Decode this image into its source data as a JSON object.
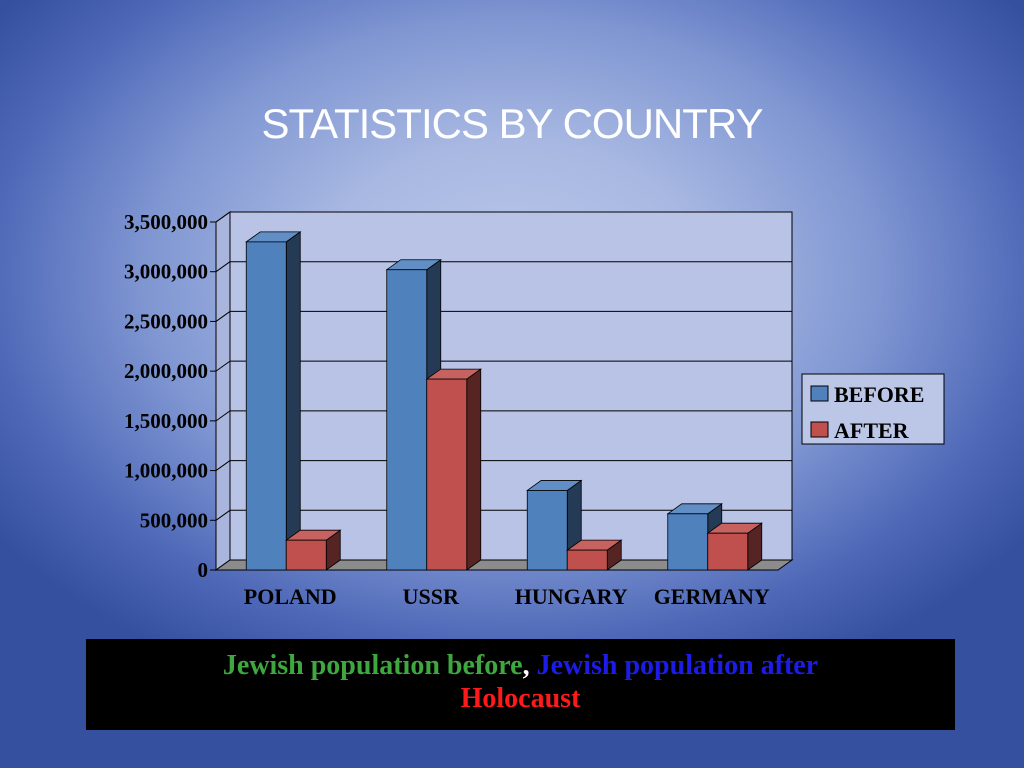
{
  "slide": {
    "title": "STATISTICS BY COUNTRY",
    "caption": {
      "part1": "Jewish population before",
      "comma": ",",
      "part2": "Jewish population after",
      "part3": "Holocaust"
    }
  },
  "colors": {
    "before": "#4f81bd",
    "after": "#c0504d",
    "caption_before": "#3ea83e",
    "caption_after": "#1c1ce6",
    "caption_holocaust": "#ff1a1a"
  },
  "chart_data": {
    "type": "bar",
    "style": "3d-clustered",
    "title": "",
    "xlabel": "",
    "ylabel": "",
    "categories": [
      "POLAND",
      "USSR",
      "HUNGARY",
      "GERMANY"
    ],
    "series": [
      {
        "name": "BEFORE",
        "values": [
          3300000,
          3020000,
          800000,
          565000
        ]
      },
      {
        "name": "AFTER",
        "values": [
          300000,
          1920000,
          200000,
          370000
        ]
      }
    ],
    "ylim": [
      0,
      3500000
    ],
    "yticks": [
      0,
      500000,
      1000000,
      1500000,
      2000000,
      2500000,
      3000000,
      3500000
    ],
    "ytick_labels": [
      "0",
      "500,000",
      "1,000,000",
      "1,500,000",
      "2,000,000",
      "2,500,000",
      "3,000,000",
      "3,500,000"
    ],
    "grid": true,
    "legend": "right"
  }
}
